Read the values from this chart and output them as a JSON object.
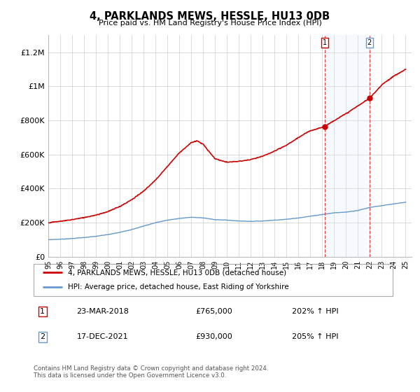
{
  "title": "4, PARKLANDS MEWS, HESSLE, HU13 0DB",
  "subtitle": "Price paid vs. HM Land Registry's House Price Index (HPI)",
  "ylabel_ticks": [
    "£0",
    "£200K",
    "£400K",
    "£600K",
    "£800K",
    "£1M",
    "£1.2M"
  ],
  "ylim": [
    0,
    1300000
  ],
  "yticks": [
    0,
    200000,
    400000,
    600000,
    800000,
    1000000,
    1200000
  ],
  "legend_line1": "4, PARKLANDS MEWS, HESSLE, HU13 0DB (detached house)",
  "legend_line2": "HPI: Average price, detached house, East Riding of Yorkshire",
  "annotation1_label": "1",
  "annotation1_date": "23-MAR-2018",
  "annotation1_price": "£765,000",
  "annotation1_hpi": "202% ↑ HPI",
  "annotation2_label": "2",
  "annotation2_date": "17-DEC-2021",
  "annotation2_price": "£930,000",
  "annotation2_hpi": "205% ↑ HPI",
  "footer": "Contains HM Land Registry data © Crown copyright and database right 2024.\nThis data is licensed under the Open Government Licence v3.0.",
  "line_color_red": "#cc0000",
  "line_color_blue": "#6699cc",
  "shade_color": "#ddeeff",
  "vline_color": "#dd4444",
  "background_color": "#ffffff",
  "grid_color": "#cccccc",
  "sale1_x": 2018.22,
  "sale1_y": 765000,
  "sale2_x": 2021.96,
  "sale2_y": 930000,
  "xmin": 1995,
  "xmax": 2025.5
}
